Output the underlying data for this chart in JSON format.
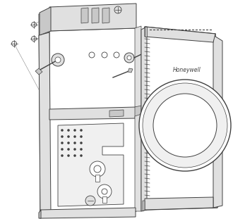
{
  "bg_color": "#ffffff",
  "lc": "#404040",
  "lc_light": "#888888",
  "fill_white": "#ffffff",
  "fill_vlight": "#f0f0f0",
  "fill_light": "#e0e0e0",
  "fill_mid": "#c8c8c8",
  "fill_dark": "#a8a8a8",
  "honeywell_text": "Honeywell",
  "font_size_brand": 5.5,
  "figsize": [
    3.3,
    3.11
  ],
  "dpi": 100
}
